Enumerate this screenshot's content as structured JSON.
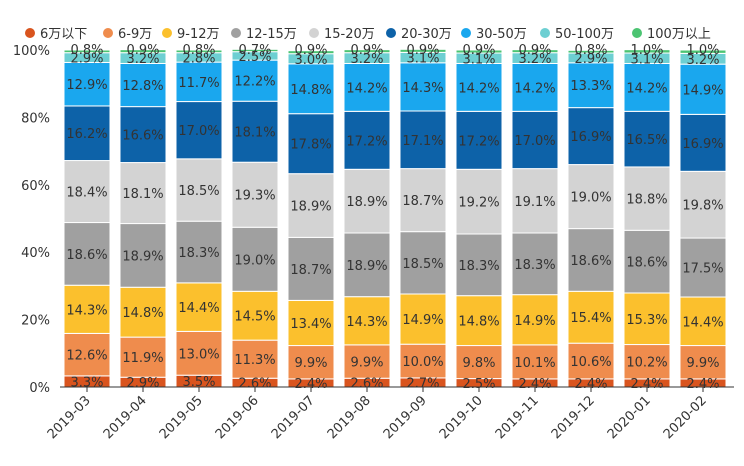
{
  "chart_data": {
    "type": "bar",
    "stacked": true,
    "normalized": true,
    "categories": [
      "2019-03",
      "2019-04",
      "2019-05",
      "2019-06",
      "2019-07",
      "2019-08",
      "2019-09",
      "2019-10",
      "2019-11",
      "2019-12",
      "2020-01",
      "2020-02"
    ],
    "series": [
      {
        "name": "6万以下",
        "color": "#d9541e",
        "values": [
          3.3,
          2.9,
          3.5,
          2.6,
          2.4,
          2.6,
          2.7,
          2.5,
          2.4,
          2.4,
          2.4,
          2.4
        ]
      },
      {
        "name": "6-9万",
        "color": "#ef8c4d",
        "values": [
          12.6,
          11.9,
          13.0,
          11.3,
          9.9,
          9.9,
          10.0,
          9.8,
          10.1,
          10.6,
          10.2,
          9.9
        ]
      },
      {
        "name": "9-12万",
        "color": "#fbc02d",
        "values": [
          14.3,
          14.8,
          14.4,
          14.5,
          13.4,
          14.3,
          14.9,
          14.8,
          14.9,
          15.4,
          15.3,
          14.4
        ]
      },
      {
        "name": "12-15万",
        "color": "#a0a0a0",
        "values": [
          18.6,
          18.9,
          18.3,
          19.0,
          18.7,
          18.9,
          18.5,
          18.3,
          18.3,
          18.6,
          18.6,
          17.5
        ]
      },
      {
        "name": "15-20万",
        "color": "#d3d3d3",
        "values": [
          18.4,
          18.1,
          18.5,
          19.3,
          18.9,
          18.9,
          18.7,
          19.2,
          19.1,
          19.0,
          18.8,
          19.8
        ]
      },
      {
        "name": "20-30万",
        "color": "#0d62a8",
        "values": [
          16.2,
          16.6,
          17.0,
          18.1,
          17.8,
          17.2,
          17.1,
          17.2,
          17.0,
          16.9,
          16.5,
          16.9
        ]
      },
      {
        "name": "30-50万",
        "color": "#1aa7ee",
        "values": [
          12.9,
          12.8,
          11.7,
          12.2,
          14.8,
          14.2,
          14.3,
          14.2,
          14.2,
          13.3,
          14.2,
          14.9
        ]
      },
      {
        "name": "50-100万",
        "color": "#6dcfd2",
        "values": [
          2.9,
          3.2,
          2.8,
          2.5,
          3.0,
          3.2,
          3.1,
          3.1,
          3.2,
          2.9,
          3.1,
          3.2
        ]
      },
      {
        "name": "100万以上",
        "color": "#4cc472",
        "values": [
          0.8,
          0.9,
          0.8,
          0.7,
          0.9,
          0.9,
          0.9,
          0.9,
          0.9,
          0.8,
          1.0,
          1.0
        ]
      }
    ],
    "y_ticks": [
      "0%",
      "20%",
      "40%",
      "60%",
      "80%",
      "100%"
    ],
    "ylim": [
      0,
      100
    ],
    "value_suffix": "%",
    "legend_position": "top",
    "grid": false
  }
}
